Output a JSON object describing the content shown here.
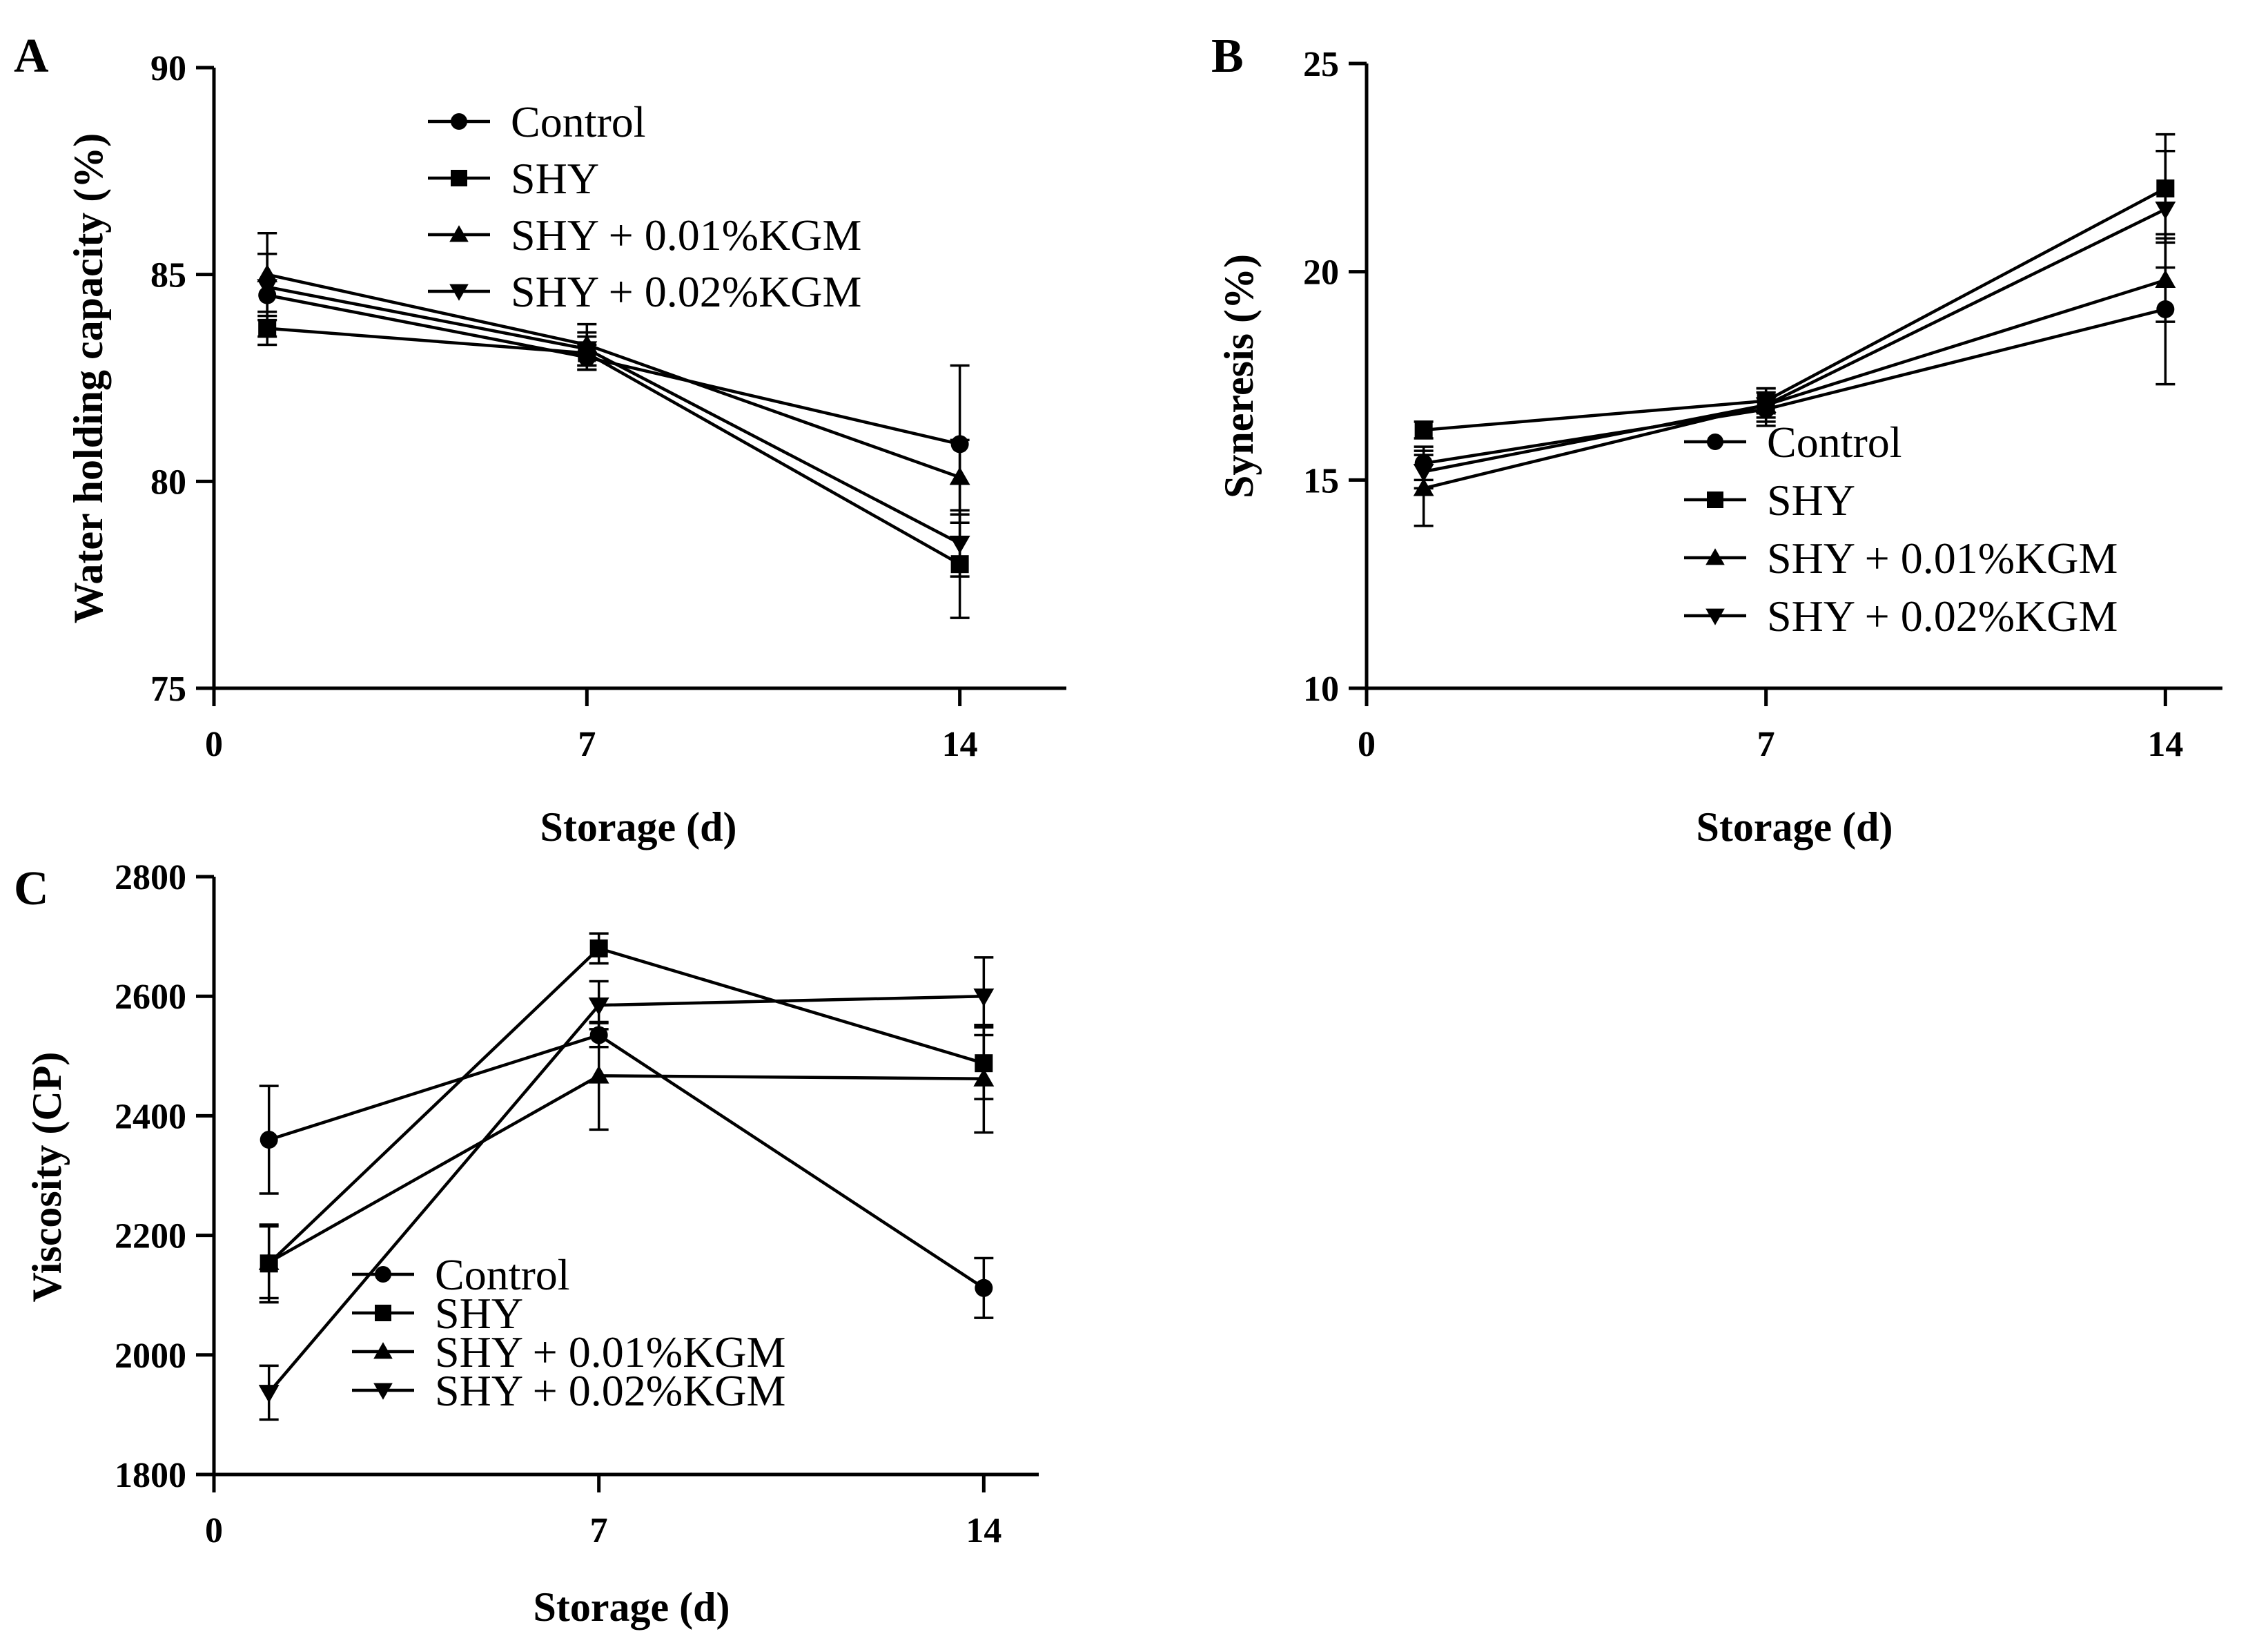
{
  "chart_data": [
    {
      "panel": "A",
      "type": "line",
      "title": "",
      "xlabel": "Storage (d)",
      "ylabel": "Water holding capacity (%)",
      "xlim": [
        0,
        16
      ],
      "ylim": [
        75,
        90
      ],
      "xticks": [
        0,
        7,
        14
      ],
      "yticks": [
        75,
        80,
        85,
        90
      ],
      "legend": "top-center",
      "x": [
        1,
        7,
        14
      ],
      "series": [
        {
          "name": "Control",
          "marker": "circle",
          "values": [
            84.5,
            83.0,
            80.9
          ],
          "errors": [
            1.0,
            0.3,
            1.9
          ]
        },
        {
          "name": "SHY",
          "marker": "square",
          "values": [
            83.7,
            83.1,
            78.0
          ],
          "errors": [
            0.4,
            0.4,
            1.3
          ]
        },
        {
          "name": "SHY + 0.01%KGM",
          "marker": "triangle-up",
          "values": [
            85.0,
            83.3,
            80.1
          ],
          "errors": [
            1.0,
            0.5,
            0.9
          ]
        },
        {
          "name": "SHY + 0.02%KGM",
          "marker": "triangle-down",
          "values": [
            84.7,
            83.2,
            78.5
          ],
          "errors": [
            0.8,
            0.4,
            0.8
          ]
        }
      ]
    },
    {
      "panel": "B",
      "type": "line",
      "title": "",
      "xlabel": "Storage (d)",
      "ylabel": "Syneresis (%)",
      "xlim": [
        0,
        15
      ],
      "ylim": [
        10,
        25
      ],
      "xticks": [
        0,
        7,
        14
      ],
      "yticks": [
        10,
        15,
        20,
        25
      ],
      "legend": "center-right",
      "x": [
        1,
        7,
        14
      ],
      "series": [
        {
          "name": "Control",
          "marker": "circle",
          "values": [
            15.4,
            16.7,
            19.1
          ],
          "errors": [
            0.4,
            0.4,
            1.8
          ]
        },
        {
          "name": "SHY",
          "marker": "square",
          "values": [
            16.2,
            16.9,
            22.0
          ],
          "errors": [
            0.2,
            0.3,
            1.3
          ]
        },
        {
          "name": "SHY + 0.01%KGM",
          "marker": "triangle-up",
          "values": [
            14.8,
            16.8,
            19.8
          ],
          "errors": [
            0.9,
            0.4,
            1.0
          ]
        },
        {
          "name": "SHY + 0.02%KGM",
          "marker": "triangle-down",
          "values": [
            15.2,
            16.8,
            21.5
          ],
          "errors": [
            0.4,
            0.3,
            1.4
          ]
        }
      ]
    },
    {
      "panel": "C",
      "type": "line",
      "title": "",
      "xlabel": "Storage (d)",
      "ylabel": "Viscosity (CP)",
      "xlim": [
        0,
        15
      ],
      "ylim": [
        1800,
        2800
      ],
      "xticks": [
        0,
        7,
        14
      ],
      "yticks": [
        1800,
        2000,
        2200,
        2400,
        2600,
        2800
      ],
      "legend": "lower-center",
      "x": [
        1,
        7,
        14
      ],
      "series": [
        {
          "name": "Control",
          "marker": "circle",
          "values": [
            2360,
            2535,
            2112
          ],
          "errors": [
            90,
            20,
            50
          ]
        },
        {
          "name": "SHY",
          "marker": "square",
          "values": [
            2153,
            2680,
            2488
          ],
          "errors": [
            65,
            25,
            60
          ]
        },
        {
          "name": "SHY + 0.01%KGM",
          "marker": "triangle-up",
          "values": [
            2155,
            2467,
            2462
          ],
          "errors": [
            60,
            90,
            90
          ]
        },
        {
          "name": "SHY + 0.02%KGM",
          "marker": "triangle-down",
          "values": [
            1937,
            2585,
            2600
          ],
          "errors": [
            45,
            40,
            65
          ]
        }
      ]
    }
  ]
}
